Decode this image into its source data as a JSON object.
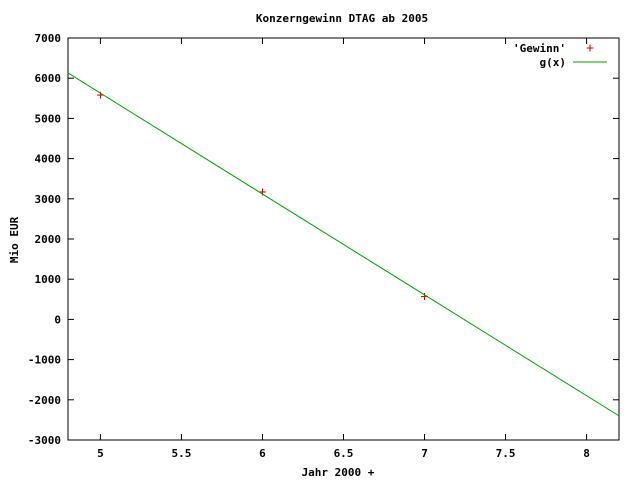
{
  "chart_data": {
    "type": "scatter",
    "title": "Konzerngewinn DTAG ab 2005",
    "xlabel": "Jahr 2000 +",
    "ylabel": "Mio EUR",
    "xlim": [
      4.8,
      8.2
    ],
    "ylim": [
      -3000,
      7000
    ],
    "x_ticks": [
      5,
      5.5,
      6,
      6.5,
      7,
      7.5,
      8
    ],
    "x_tick_labels": [
      "5",
      "5.5",
      "6",
      "6.5",
      "7",
      "7.5",
      "8"
    ],
    "y_ticks": [
      -3000,
      -2000,
      -1000,
      0,
      1000,
      2000,
      3000,
      4000,
      5000,
      6000,
      7000
    ],
    "y_tick_labels": [
      "-3000",
      "-2000",
      "-1000",
      "0",
      "1000",
      "2000",
      "3000",
      "4000",
      "5000",
      "6000",
      "7000"
    ],
    "grid": false,
    "legend_position": "top-right",
    "series": [
      {
        "name": "'Gewinn'",
        "kind": "points",
        "color": "#cc0000",
        "x": [
          5,
          6,
          7
        ],
        "y": [
          5580,
          3170,
          570
        ]
      },
      {
        "name": "g(x)",
        "kind": "line",
        "color": "#00a000",
        "x": [
          4.8,
          8.2
        ],
        "y": [
          6130,
          -2400
        ]
      }
    ]
  }
}
